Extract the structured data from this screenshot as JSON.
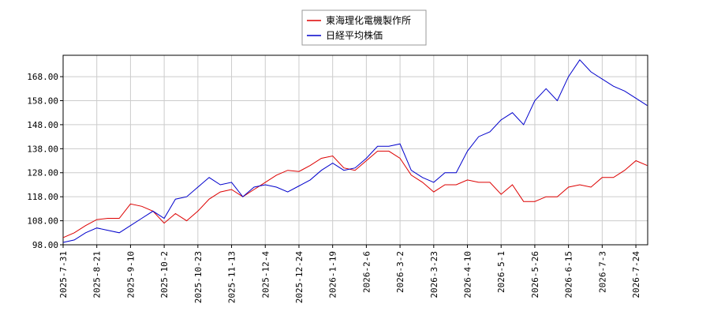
{
  "chart_data": {
    "type": "line",
    "categories": [
      "2025-7-31",
      null,
      null,
      "2025-8-21",
      null,
      null,
      "2025-9-10",
      null,
      null,
      "2025-10-2",
      null,
      null,
      "2025-10-23",
      null,
      null,
      "2025-11-13",
      null,
      null,
      "2025-12-4",
      null,
      null,
      "2025-12-24",
      null,
      null,
      "2026-1-19",
      null,
      null,
      "2026-2-6",
      null,
      null,
      "2026-3-2",
      null,
      null,
      "2026-3-23",
      null,
      null,
      "2026-4-10",
      null,
      null,
      "2026-5-1",
      null,
      null,
      "2026-5-26",
      null,
      null,
      "2026-6-15",
      null,
      null,
      "2026-7-3",
      null,
      null,
      "2026-7-24",
      null
    ],
    "series": [
      {
        "name": "東海理化電機製作所",
        "color": "#dd0000",
        "values": [
          101,
          103,
          106,
          108.5,
          109,
          109,
          115,
          114,
          112,
          107,
          111,
          108,
          112,
          117,
          120,
          121,
          118,
          121,
          124,
          127,
          129,
          128.5,
          131,
          134,
          135,
          130,
          129,
          133,
          137,
          137,
          134,
          127,
          124,
          120,
          123,
          123,
          125,
          124,
          124,
          119,
          123,
          116,
          116,
          118,
          118,
          122,
          123,
          122,
          126,
          126,
          129,
          133,
          131
        ]
      },
      {
        "name": "日経平均株価",
        "color": "#0000cc",
        "values": [
          99,
          100,
          103,
          105,
          104,
          103,
          106,
          109,
          112,
          109,
          117,
          118,
          122,
          126,
          123,
          124,
          118,
          122,
          123,
          122,
          120,
          122.5,
          125,
          129,
          132,
          129,
          130,
          134,
          139,
          139,
          140,
          129,
          126,
          124,
          128,
          128,
          137,
          143,
          145,
          150,
          153,
          148,
          158,
          163,
          158,
          168,
          175,
          170,
          167,
          164,
          162,
          159,
          156
        ]
      }
    ],
    "ylim": [
      98,
      176.9
    ],
    "yticks": [
      {
        "value": 98,
        "label": "98.00"
      },
      {
        "value": 108,
        "label": "108.00"
      },
      {
        "value": 118,
        "label": "118.00"
      },
      {
        "value": 128,
        "label": "128.00"
      },
      {
        "value": 138,
        "label": "138.00"
      },
      {
        "value": 148,
        "label": "148.00"
      },
      {
        "value": 158,
        "label": "158.00"
      },
      {
        "value": 168,
        "label": "168.00"
      }
    ],
    "grid": true,
    "legend": "top"
  }
}
